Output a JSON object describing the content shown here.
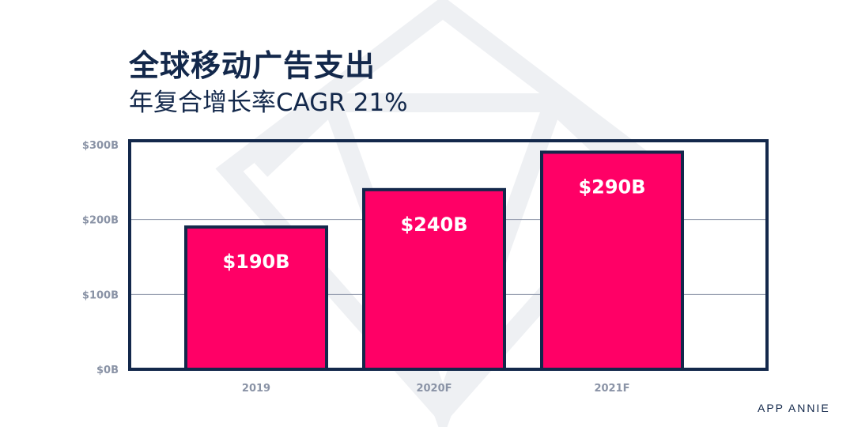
{
  "title": "全球移动广告支出",
  "subtitle": "年复合增长率CAGR 21%",
  "logo": "APP ANNIE",
  "colors": {
    "bar": "#ff0066",
    "frame": "#13284b",
    "axis_text": "#8a93a6",
    "grid": "#8a93a6"
  },
  "chart_data": {
    "type": "bar",
    "categories": [
      "2019",
      "2020F",
      "2021F"
    ],
    "values": [
      190,
      240,
      290
    ],
    "data_labels": [
      "$190B",
      "$240B",
      "$290B"
    ],
    "yticks": [
      "$0B",
      "$100B",
      "$200B",
      "$300B"
    ],
    "ytick_values": [
      0,
      100,
      200,
      300
    ],
    "ylim": [
      0,
      300
    ],
    "grid": true,
    "unit": "billion USD"
  }
}
